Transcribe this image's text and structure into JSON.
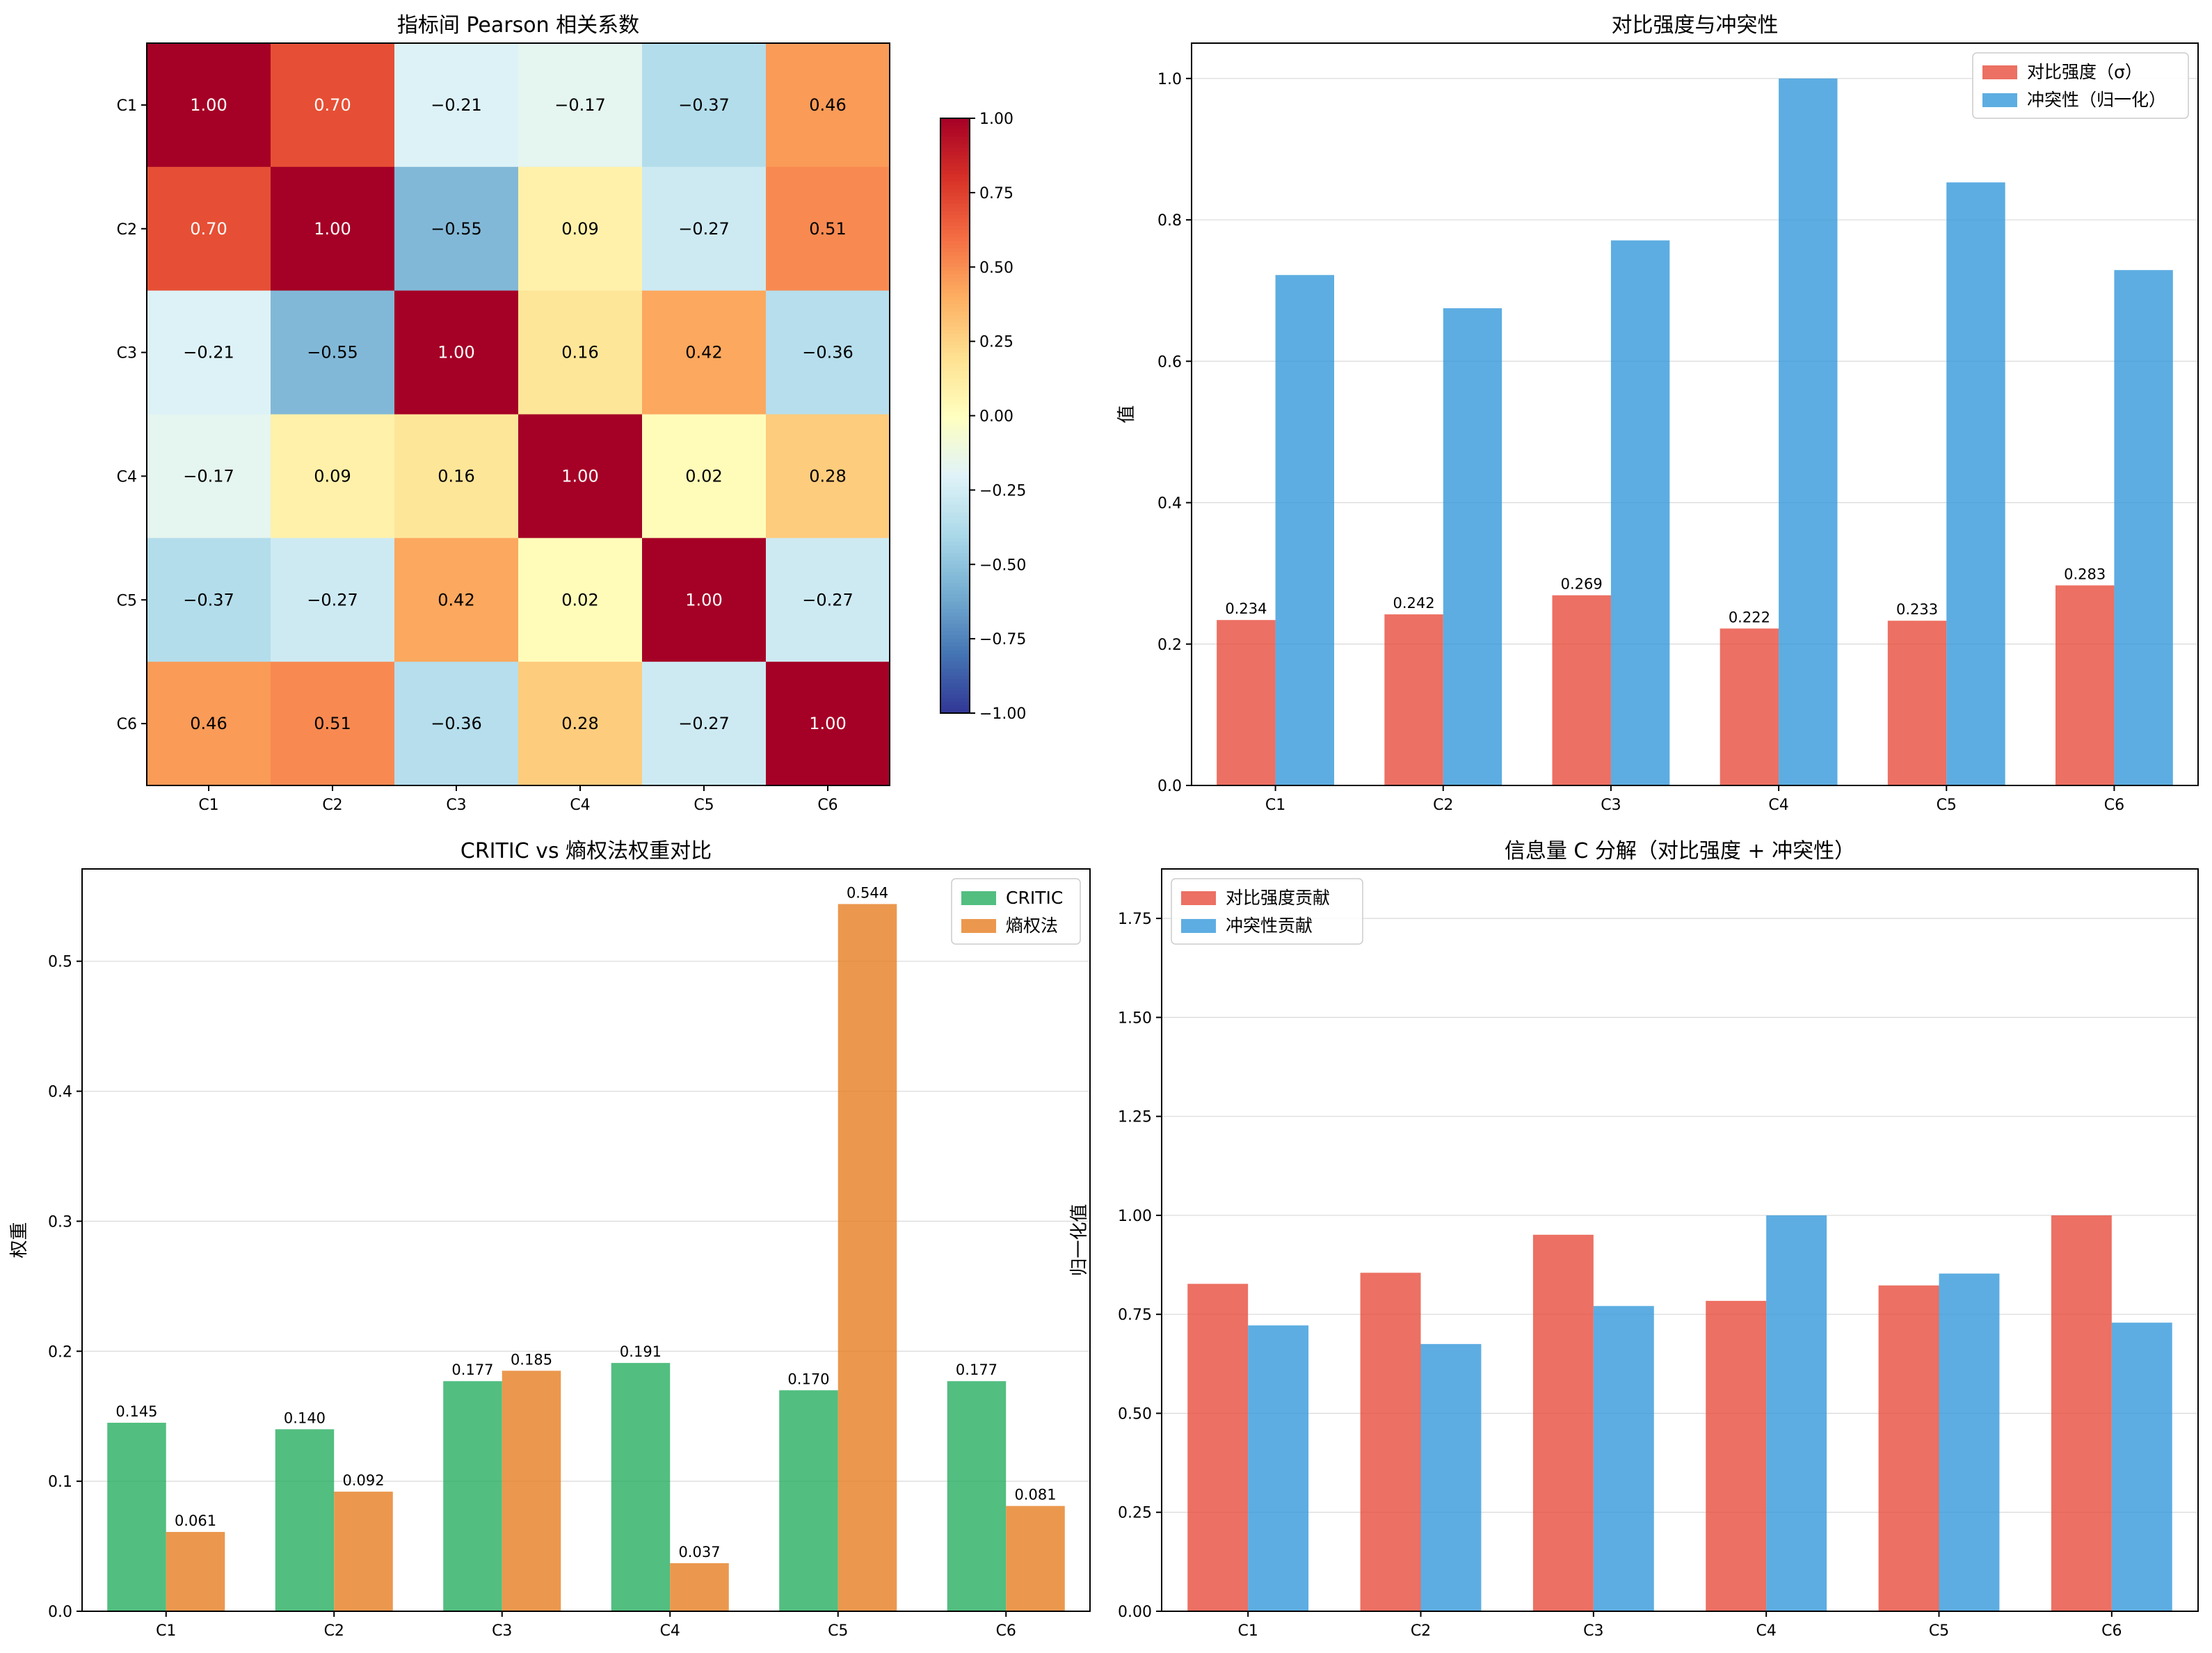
{
  "chart_data": [
    {
      "type": "heatmap",
      "title": "指标间 Pearson 相关系数",
      "x_labels": [
        "C1",
        "C2",
        "C3",
        "C4",
        "C5",
        "C6"
      ],
      "y_labels": [
        "C1",
        "C2",
        "C3",
        "C4",
        "C5",
        "C6"
      ],
      "matrix": [
        [
          1.0,
          0.7,
          -0.21,
          -0.17,
          -0.37,
          0.46
        ],
        [
          0.7,
          1.0,
          -0.55,
          0.09,
          -0.27,
          0.51
        ],
        [
          -0.21,
          -0.55,
          1.0,
          0.16,
          0.42,
          -0.36
        ],
        [
          -0.17,
          0.09,
          0.16,
          1.0,
          0.02,
          0.28
        ],
        [
          -0.37,
          -0.27,
          0.42,
          0.02,
          1.0,
          -0.27
        ],
        [
          0.46,
          0.51,
          -0.36,
          0.28,
          -0.27,
          1.0
        ]
      ],
      "cell_labels": [
        [
          "1.00",
          "0.70",
          "−0.21",
          "−0.17",
          "−0.37",
          "0.46"
        ],
        [
          "0.70",
          "1.00",
          "−0.55",
          "0.09",
          "−0.27",
          "0.51"
        ],
        [
          "−0.21",
          "−0.55",
          "1.00",
          "0.16",
          "0.42",
          "−0.36"
        ],
        [
          "−0.17",
          "0.09",
          "0.16",
          "1.00",
          "0.02",
          "0.28"
        ],
        [
          "−0.37",
          "−0.27",
          "0.42",
          "0.02",
          "1.00",
          "−0.27"
        ],
        [
          "0.46",
          "0.51",
          "−0.36",
          "0.28",
          "−0.27",
          "1.00"
        ]
      ],
      "colormap": "RdYlBu_r",
      "vmin": -1,
      "vmax": 1,
      "colorbar_ticks": [
        1.0,
        0.75,
        0.5,
        0.25,
        0.0,
        -0.25,
        -0.5,
        -0.75,
        -1.0
      ],
      "colorbar_tick_labels": [
        "1.00",
        "0.75",
        "0.50",
        "0.25",
        "0.00",
        "−0.25",
        "−0.50",
        "−0.75",
        "−1.00"
      ]
    },
    {
      "type": "bar",
      "title": "对比强度与冲突性",
      "ylabel": "值",
      "categories": [
        "C1",
        "C2",
        "C3",
        "C4",
        "C5",
        "C6"
      ],
      "ylim": [
        0,
        1.05
      ],
      "y_ticks": [
        0.0,
        0.2,
        0.4,
        0.6,
        0.8,
        1.0
      ],
      "y_tick_labels": [
        "0.0",
        "0.2",
        "0.4",
        "0.6",
        "0.8",
        "1.0"
      ],
      "grid": "horizontal",
      "legend_position": "top-right",
      "series": [
        {
          "name": "对比强度（σ）",
          "color": "#e74c3c",
          "values": [
            0.234,
            0.242,
            0.269,
            0.222,
            0.233,
            0.283
          ],
          "data_labels": [
            "0.234",
            "0.242",
            "0.269",
            "0.222",
            "0.233",
            "0.283"
          ]
        },
        {
          "name": "冲突性（归一化）",
          "color": "#3498db",
          "values": [
            0.722,
            0.675,
            0.771,
            1.0,
            0.853,
            0.729
          ]
        }
      ]
    },
    {
      "type": "bar",
      "title": "CRITIC vs 熵权法权重对比",
      "ylabel": "权重",
      "categories": [
        "C1",
        "C2",
        "C3",
        "C4",
        "C5",
        "C6"
      ],
      "ylim": [
        0,
        0.571
      ],
      "y_ticks": [
        0.0,
        0.1,
        0.2,
        0.3,
        0.4,
        0.5
      ],
      "y_tick_labels": [
        "0.0",
        "0.1",
        "0.2",
        "0.3",
        "0.4",
        "0.5"
      ],
      "grid": "horizontal",
      "legend_position": "top-right",
      "series": [
        {
          "name": "CRITIC",
          "color": "#27ae60",
          "values": [
            0.145,
            0.14,
            0.177,
            0.191,
            0.17,
            0.177
          ],
          "data_labels": [
            "0.145",
            "0.140",
            "0.177",
            "0.191",
            "0.170",
            "0.177"
          ]
        },
        {
          "name": "熵权法",
          "color": "#e67e22",
          "values": [
            0.061,
            0.092,
            0.185,
            0.037,
            0.544,
            0.081
          ],
          "data_labels": [
            "0.061",
            "0.092",
            "0.185",
            "0.037",
            "0.544",
            "0.081"
          ]
        }
      ]
    },
    {
      "type": "bar",
      "stacked": true,
      "title": "信息量 C 分解（对比强度 + 冲突性）",
      "ylabel": "归一化值",
      "categories": [
        "C1",
        "C2",
        "C3",
        "C4",
        "C5",
        "C6"
      ],
      "ylim": [
        0,
        1.875
      ],
      "y_ticks": [
        0.0,
        0.25,
        0.5,
        0.75,
        1.0,
        1.25,
        1.5,
        1.75
      ],
      "y_tick_labels": [
        "0.00",
        "0.25",
        "0.50",
        "0.75",
        "1.00",
        "1.25",
        "1.50",
        "1.75"
      ],
      "grid": "horizontal",
      "legend_position": "top-left",
      "series": [
        {
          "name": "对比强度贡献",
          "color": "#e74c3c",
          "values": [
            0.827,
            0.855,
            0.951,
            0.784,
            0.823,
            1.0
          ]
        },
        {
          "name": "冲突性贡献",
          "color": "#3498db",
          "values": [
            0.722,
            0.675,
            0.771,
            1.0,
            0.853,
            0.729
          ]
        }
      ]
    }
  ]
}
